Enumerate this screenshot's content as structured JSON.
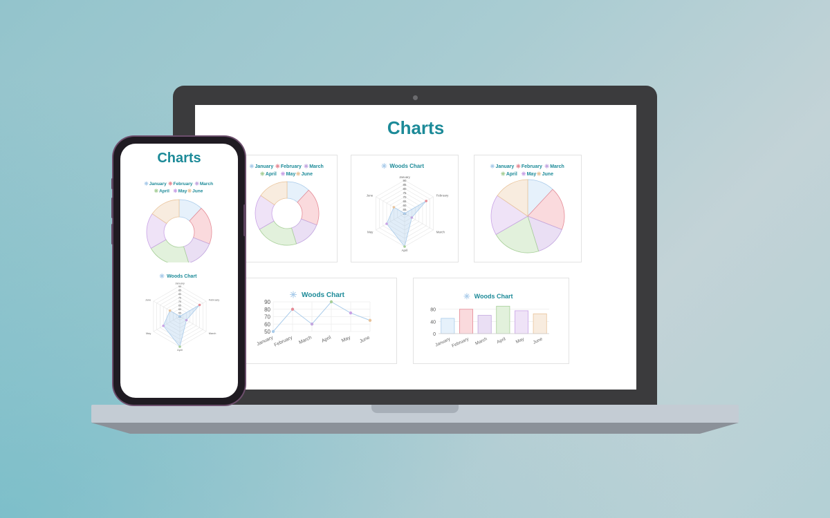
{
  "page": {
    "title": "Charts"
  },
  "colors": {
    "accent": "#1c8a98",
    "series_fill": [
      "#e6f1fb",
      "#fadadd",
      "#eadff4",
      "#e2f1dc",
      "#efe3f7",
      "#f8ecdf"
    ],
    "series_stroke": [
      "#a9cbea",
      "#e58a95",
      "#c2a6df",
      "#a7cf98",
      "#c9a2e6",
      "#e9c39a"
    ]
  },
  "legend": {
    "items": [
      "January",
      "February",
      "March",
      "April",
      "May",
      "June"
    ],
    "icon": "star-icon"
  },
  "chart_data": [
    {
      "id": "doughnut",
      "type": "pie",
      "variant": "doughnut",
      "categories": [
        "January",
        "February",
        "March",
        "April",
        "May",
        "June"
      ],
      "values": [
        50,
        80,
        60,
        90,
        75,
        65
      ]
    },
    {
      "id": "radar",
      "type": "radar",
      "title": "Woods Chart",
      "categories": [
        "January",
        "February",
        "March",
        "April",
        "May",
        "June"
      ],
      "values": [
        50,
        80,
        60,
        90,
        75,
        65
      ],
      "rlim": [
        50,
        90
      ],
      "ticks": [
        90,
        85,
        80,
        75,
        70,
        65,
        60,
        55,
        50
      ]
    },
    {
      "id": "pie",
      "type": "pie",
      "categories": [
        "January",
        "February",
        "March",
        "April",
        "May",
        "June"
      ],
      "values": [
        50,
        80,
        60,
        90,
        75,
        65
      ]
    },
    {
      "id": "line",
      "type": "line",
      "title": "Woods Chart",
      "categories": [
        "January",
        "February",
        "March",
        "April",
        "May",
        "June"
      ],
      "values": [
        50,
        80,
        60,
        90,
        75,
        65
      ],
      "ylim": [
        50,
        90
      ],
      "yticks": [
        90,
        80,
        70,
        60,
        50
      ],
      "grid": true
    },
    {
      "id": "bar",
      "type": "bar",
      "title": "Woods Chart",
      "categories": [
        "January",
        "February",
        "March",
        "April",
        "May",
        "June"
      ],
      "values": [
        50,
        80,
        60,
        90,
        75,
        65
      ],
      "ylim": [
        0,
        100
      ],
      "yticks": [
        80,
        40,
        0
      ],
      "grid": true
    }
  ]
}
